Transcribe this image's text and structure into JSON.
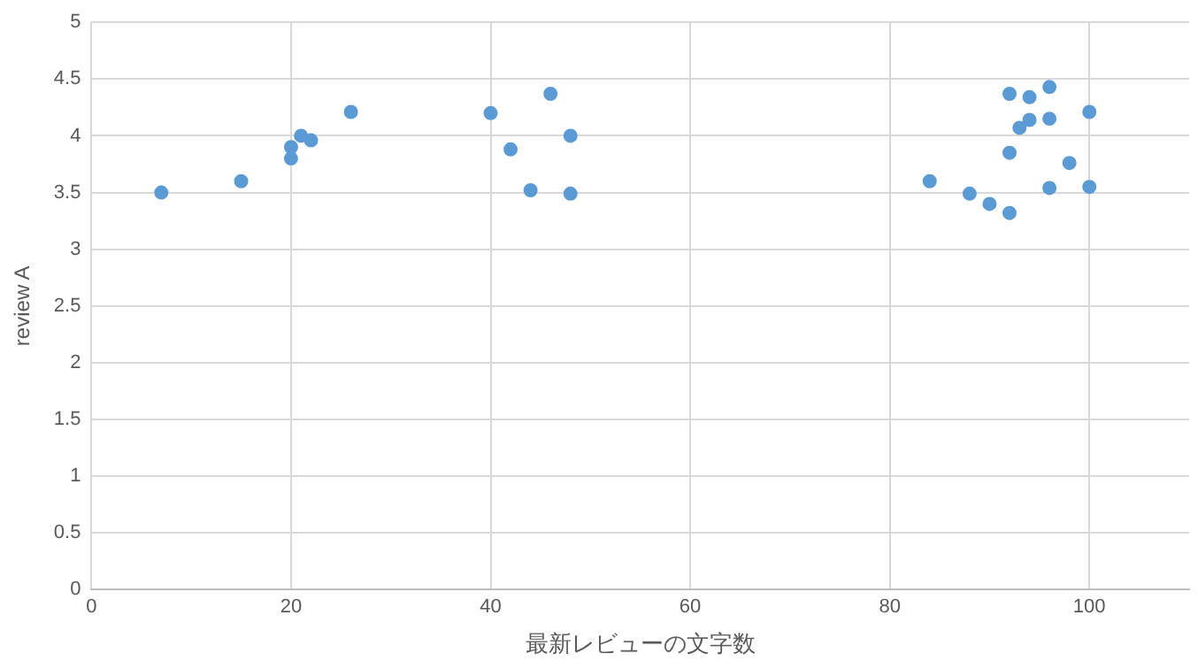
{
  "chart_data": {
    "type": "scatter",
    "xlabel": "最新レビューの文字数",
    "ylabel": "review A",
    "x": [
      7,
      15,
      20,
      20,
      21,
      22,
      26,
      40,
      42,
      44,
      46,
      48,
      48,
      84,
      88,
      90,
      92,
      92,
      92,
      93,
      94,
      94,
      96,
      96,
      96,
      98,
      100,
      100
    ],
    "series": [
      {
        "color": "#5b9bd5",
        "values": [
          3.5,
          3.6,
          3.9,
          3.8,
          4.0,
          3.96,
          4.21,
          4.2,
          3.88,
          3.52,
          4.37,
          4.0,
          3.49,
          3.6,
          3.49,
          3.4,
          3.32,
          3.85,
          4.37,
          4.07,
          4.34,
          4.14,
          4.43,
          4.15,
          3.54,
          3.76,
          4.21,
          3.55
        ]
      }
    ],
    "xlim": [
      0,
      110
    ],
    "xticks": [
      0,
      20,
      40,
      60,
      80,
      100
    ],
    "ylim": [
      0,
      5
    ],
    "yticks": [
      0,
      0.5,
      1,
      1.5,
      2,
      2.5,
      3,
      3.5,
      4,
      4.5,
      5
    ],
    "grid": true,
    "legend": false,
    "marker": "circle"
  }
}
